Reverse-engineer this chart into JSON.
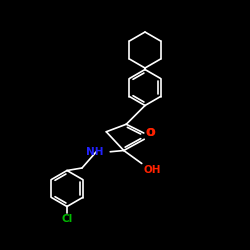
{
  "bg_color": "#000000",
  "bond_color": "#ffffff",
  "bond_width": 1.2,
  "NH_color": "#2222ff",
  "O_color": "#ff2200",
  "Cl_color": "#00bb00",
  "OH_color": "#ff2200",
  "font_size": 7.5,
  "xlim": [
    0,
    10
  ],
  "ylim": [
    0,
    10
  ]
}
